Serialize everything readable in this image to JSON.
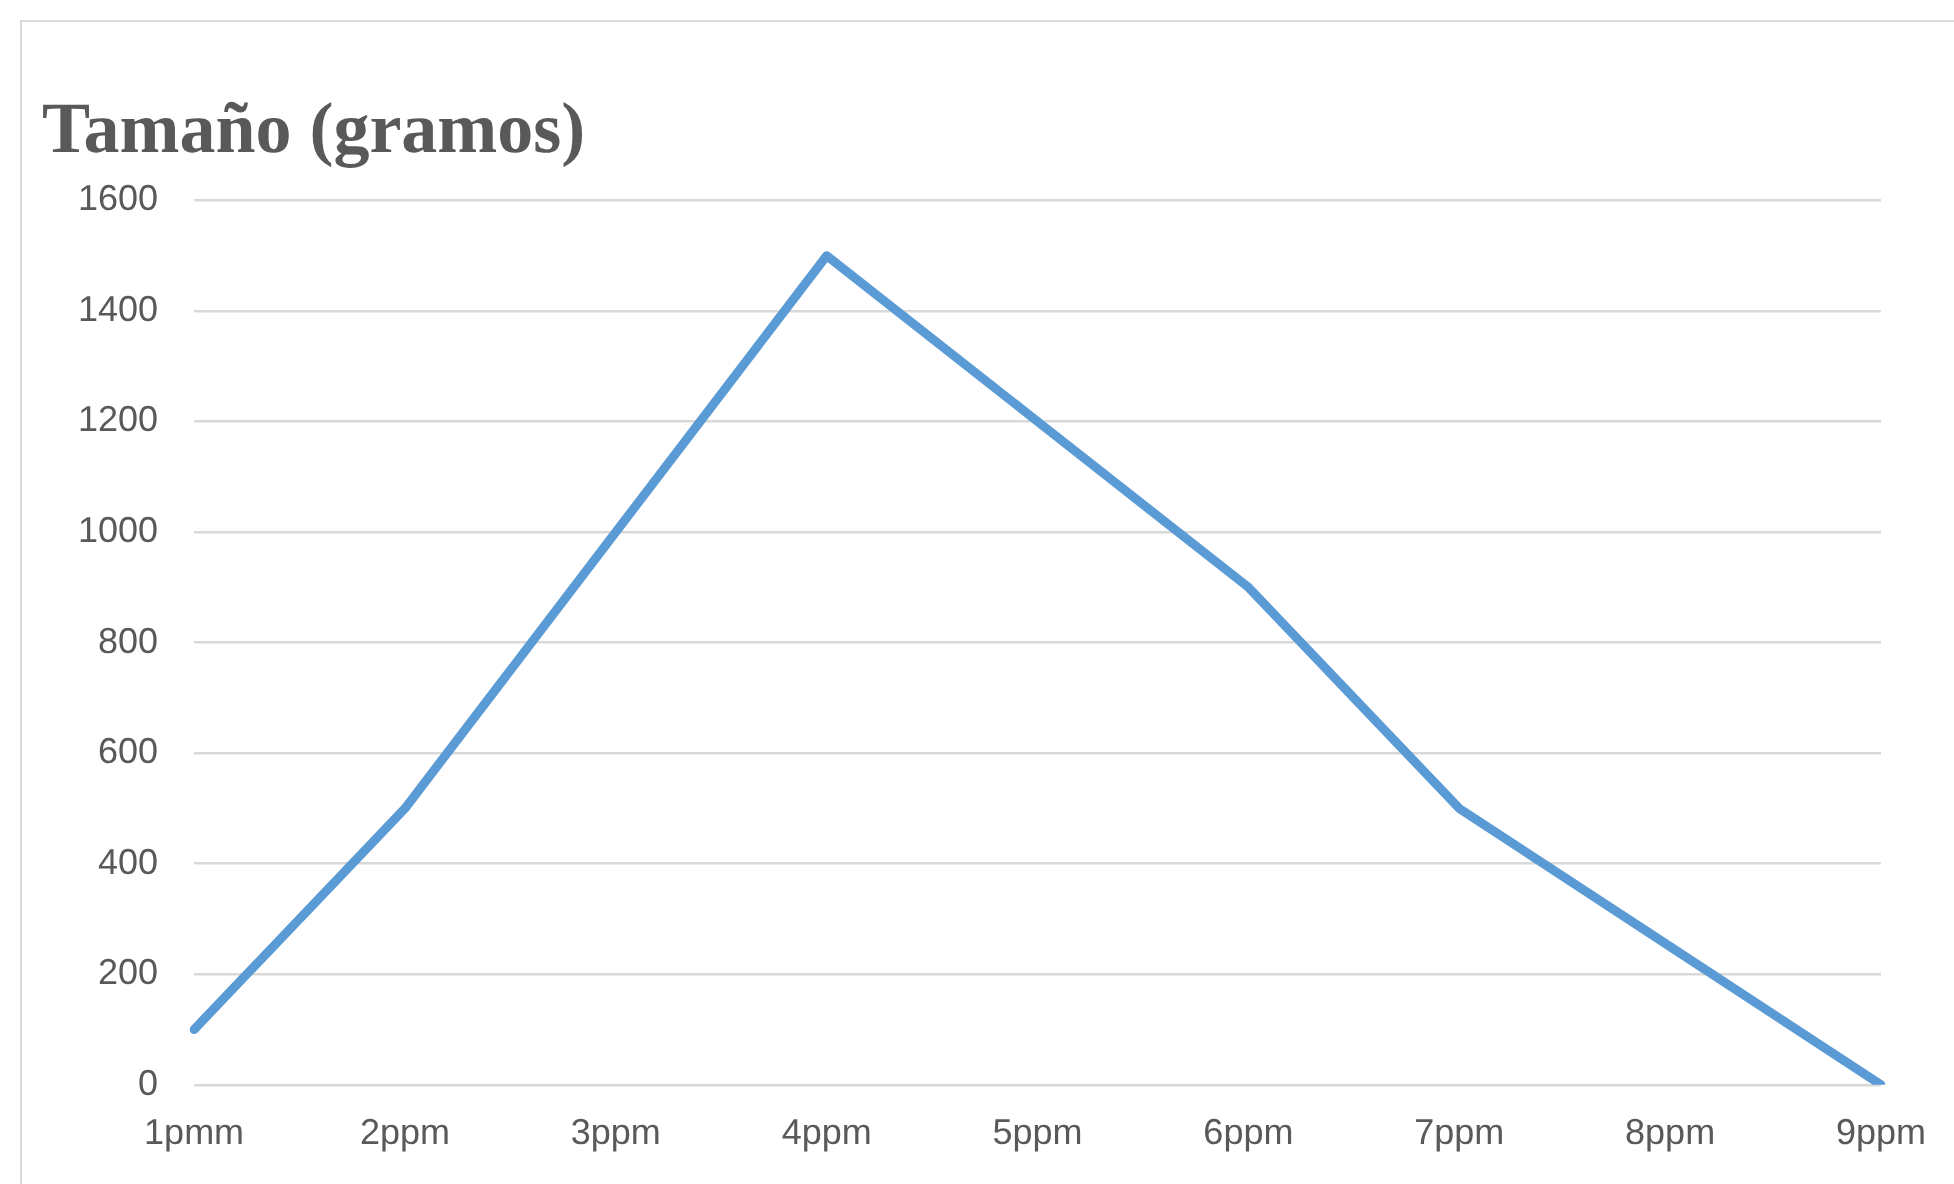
{
  "chart_data": {
    "type": "line",
    "title": "Tamaño (gramos)",
    "categories": [
      "1pmm",
      "2ppm",
      "3ppm",
      "4ppm",
      "5ppm",
      "6ppm",
      "7ppm",
      "8ppm",
      "9ppm"
    ],
    "series": [
      {
        "color": "#5b9bd5",
        "values": [
          100,
          500,
          1000,
          1500,
          1200,
          900,
          500,
          250,
          0
        ]
      }
    ],
    "ylim": [
      0,
      1600
    ],
    "yticks": [
      0,
      200,
      400,
      600,
      800,
      1000,
      1200,
      1400,
      1600
    ],
    "grid": "y",
    "legend": false,
    "marker": "none",
    "line_style": "solid"
  }
}
